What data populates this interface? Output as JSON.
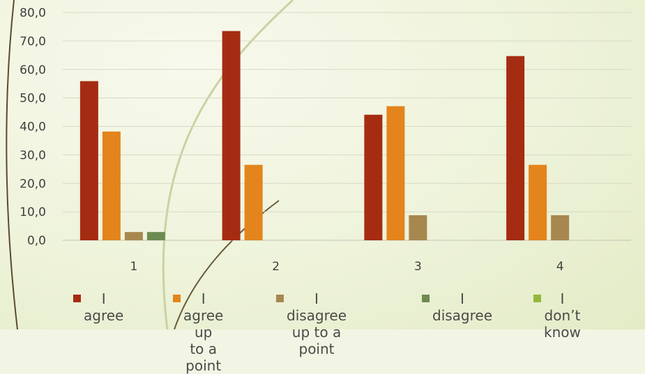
{
  "chart_data": {
    "type": "bar",
    "categories": [
      "1",
      "2",
      "3",
      "4"
    ],
    "ylim": [
      0,
      80
    ],
    "y_ticks": [
      "0,0",
      "10,0",
      "20,0",
      "30,0",
      "40,0",
      "50,0",
      "60,0",
      "70,0",
      "80,0"
    ],
    "grid": true,
    "legend_position": "bottom",
    "series": [
      {
        "name": "I agree",
        "color": "#a52c12",
        "values": [
          55.9,
          73.5,
          44.1,
          64.7
        ]
      },
      {
        "name": "I agree up to a point",
        "color": "#e4841c",
        "values": [
          38.2,
          26.5,
          47.1,
          26.5
        ]
      },
      {
        "name": "I disagree up to a point",
        "color": "#a6884f",
        "values": [
          2.9,
          0,
          8.8,
          8.8
        ]
      },
      {
        "name": "I disagree",
        "color": "#6d8b50",
        "values": [
          2.9,
          0,
          0,
          0
        ]
      },
      {
        "name": "I don’t know",
        "color": "#93b83a",
        "values": [
          0,
          0,
          0,
          0
        ]
      }
    ]
  },
  "legend": {
    "items": [
      {
        "label": "I agree"
      },
      {
        "label": "I agree up\nto a point"
      },
      {
        "label": "I disagree\nup to a point"
      },
      {
        "label": "I disagree"
      },
      {
        "label": "I don’t\nknow"
      }
    ]
  }
}
